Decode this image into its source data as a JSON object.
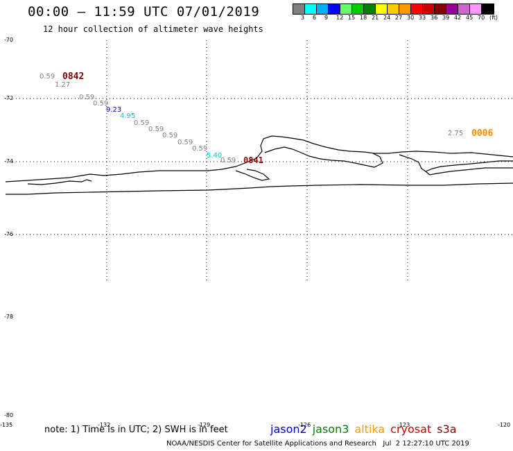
{
  "header": {
    "title": "00:00 – 11:59 UTC 07/01/2019",
    "subtitle": "12 hour collection of altimeter wave heights"
  },
  "colorbar": {
    "swatches": [
      "#808080",
      "#00ffff",
      "#00b0f0",
      "#0000ff",
      "#66ff66",
      "#00cc00",
      "#008000",
      "#ffff00",
      "#ffcc00",
      "#ff9900",
      "#ff0000",
      "#cc0000",
      "#800000",
      "#990099",
      "#cc66cc",
      "#ff99ff",
      "#000000"
    ],
    "labels": [
      "3",
      "6",
      "9",
      "12",
      "15",
      "18",
      "21",
      "24",
      "27",
      "30",
      "33",
      "36",
      "39",
      "42",
      "45",
      "70",
      "(ft)"
    ]
  },
  "axes": {
    "lat_labels": [
      "-70",
      "-72",
      "-74",
      "-76",
      "-78",
      "-80"
    ],
    "lon_labels": [
      "-135",
      "-132",
      "-129",
      "-126",
      "-123",
      "-120"
    ]
  },
  "observations": [
    {
      "value": "0.59",
      "color": "#808080"
    },
    {
      "value": "1.27",
      "color": "#808080"
    },
    {
      "value": "0.59",
      "color": "#808080"
    },
    {
      "value": "0.59",
      "color": "#808080"
    },
    {
      "value": "9.23",
      "color": "#0000cc"
    },
    {
      "value": "4.95",
      "color": "#00cccc"
    },
    {
      "value": "0.59",
      "color": "#808080"
    },
    {
      "value": "0.59",
      "color": "#808080"
    },
    {
      "value": "0.59",
      "color": "#808080"
    },
    {
      "value": "0.59",
      "color": "#808080"
    },
    {
      "value": "0.59",
      "color": "#808080"
    },
    {
      "value": "5.40",
      "color": "#00cccc"
    },
    {
      "value": "0.59",
      "color": "#808080"
    },
    {
      "value": "2.75",
      "color": "#808080"
    }
  ],
  "passes": [
    {
      "time": "0842",
      "color": "#8b0000"
    },
    {
      "time": "0841",
      "color": "#8b0000"
    },
    {
      "time": "0006",
      "color": "#ff8c00"
    }
  ],
  "footer": {
    "note": "note: 1) Time is in UTC; 2) SWH is in feet",
    "satellites": [
      {
        "name": "jason2",
        "color": "#0000cc"
      },
      {
        "name": "jason3",
        "color": "#008000"
      },
      {
        "name": "altika",
        "color": "#ff9900"
      },
      {
        "name": "cryosat",
        "color": "#cc0000"
      },
      {
        "name": "s3a",
        "color": "#8b0000"
      }
    ],
    "credit": "NOAA/NESDIS Center for Satellite Applications and Research   Jul  2 12:27:10 UTC 2019"
  }
}
